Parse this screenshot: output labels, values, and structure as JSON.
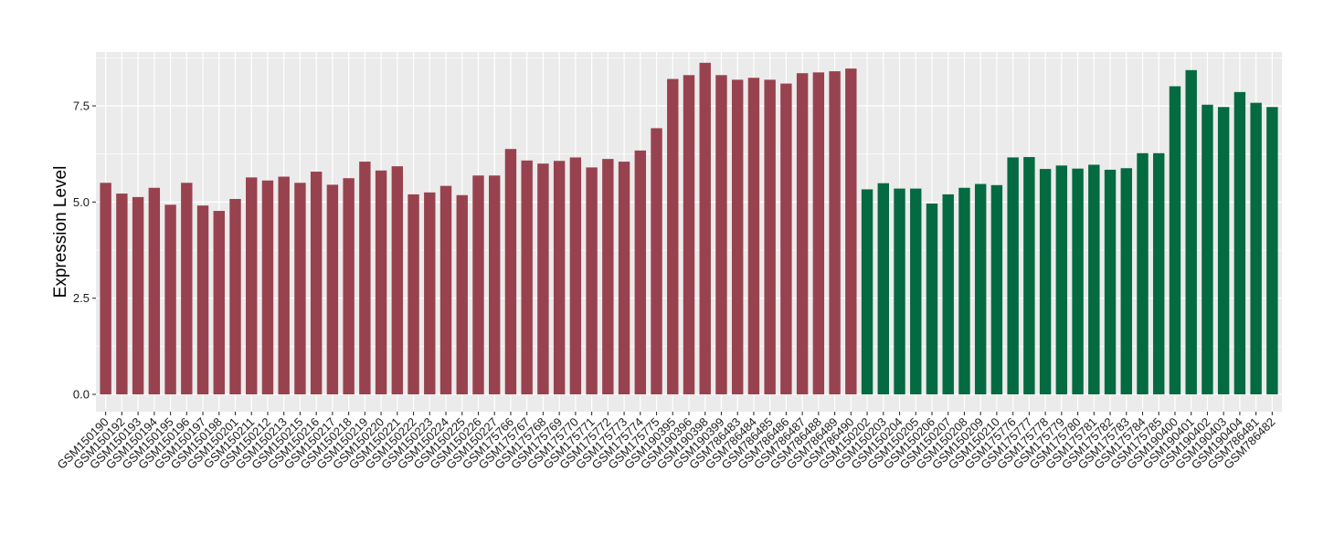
{
  "chart_data": {
    "type": "bar",
    "title": "",
    "xlabel": "",
    "ylabel": "Expression Level",
    "ylim": [
      -0.45,
      8.9
    ],
    "yticks": [
      0.0,
      2.5,
      5.0,
      7.5
    ],
    "ytick_labels": [
      "0.0",
      "2.5",
      "5.0",
      "7.5"
    ],
    "grid": true,
    "legend": "none",
    "colors": {
      "group1": "#99424f",
      "group2": "#046a41",
      "panel": "#ebebeb",
      "grid": "#ffffff"
    },
    "categories": [
      "GSM150190",
      "GSM150192",
      "GSM150193",
      "GSM150194",
      "GSM150195",
      "GSM150196",
      "GSM150197",
      "GSM150198",
      "GSM150201",
      "GSM150211",
      "GSM150212",
      "GSM150213",
      "GSM150215",
      "GSM150216",
      "GSM150217",
      "GSM150218",
      "GSM150219",
      "GSM150220",
      "GSM150221",
      "GSM150222",
      "GSM150223",
      "GSM150224",
      "GSM150225",
      "GSM150226",
      "GSM150227",
      "GSM175766",
      "GSM175767",
      "GSM175768",
      "GSM175769",
      "GSM175770",
      "GSM175771",
      "GSM175772",
      "GSM175773",
      "GSM175774",
      "GSM175775",
      "GSM190395",
      "GSM190396",
      "GSM190398",
      "GSM190399",
      "GSM786483",
      "GSM786484",
      "GSM786485",
      "GSM786486",
      "GSM786487",
      "GSM786488",
      "GSM786489",
      "GSM786490",
      "GSM150202",
      "GSM150203",
      "GSM150204",
      "GSM150205",
      "GSM150206",
      "GSM150207",
      "GSM150208",
      "GSM150209",
      "GSM150210",
      "GSM175776",
      "GSM175777",
      "GSM175778",
      "GSM175779",
      "GSM175780",
      "GSM175781",
      "GSM175782",
      "GSM175783",
      "GSM175784",
      "GSM175785",
      "GSM190400",
      "GSM190401",
      "GSM190402",
      "GSM190403",
      "GSM190404",
      "GSM786481",
      "GSM786482"
    ],
    "values": [
      5.5,
      5.22,
      5.13,
      5.37,
      4.93,
      5.5,
      4.91,
      4.77,
      5.08,
      5.64,
      5.56,
      5.66,
      5.5,
      5.79,
      5.45,
      5.62,
      6.05,
      5.82,
      5.93,
      5.2,
      5.25,
      5.42,
      5.18,
      5.69,
      5.69,
      6.38,
      6.08,
      6.0,
      6.07,
      6.16,
      5.9,
      6.12,
      6.05,
      6.34,
      6.92,
      8.2,
      8.3,
      8.62,
      8.3,
      8.18,
      8.23,
      8.18,
      8.08,
      8.35,
      8.37,
      8.4,
      8.47,
      5.33,
      5.49,
      5.35,
      5.35,
      4.96,
      5.2,
      5.37,
      5.47,
      5.44,
      6.16,
      6.17,
      5.86,
      5.95,
      5.87,
      5.97,
      5.84,
      5.88,
      6.27,
      6.27,
      8.01,
      8.43,
      7.53,
      7.47,
      7.86,
      7.58,
      7.47
    ],
    "groups": [
      "group1",
      "group1",
      "group1",
      "group1",
      "group1",
      "group1",
      "group1",
      "group1",
      "group1",
      "group1",
      "group1",
      "group1",
      "group1",
      "group1",
      "group1",
      "group1",
      "group1",
      "group1",
      "group1",
      "group1",
      "group1",
      "group1",
      "group1",
      "group1",
      "group1",
      "group1",
      "group1",
      "group1",
      "group1",
      "group1",
      "group1",
      "group1",
      "group1",
      "group1",
      "group1",
      "group1",
      "group1",
      "group1",
      "group1",
      "group1",
      "group1",
      "group1",
      "group1",
      "group1",
      "group1",
      "group1",
      "group1",
      "group2",
      "group2",
      "group2",
      "group2",
      "group2",
      "group2",
      "group2",
      "group2",
      "group2",
      "group2",
      "group2",
      "group2",
      "group2",
      "group2",
      "group2",
      "group2",
      "group2",
      "group2",
      "group2",
      "group2",
      "group2",
      "group2",
      "group2",
      "group2",
      "group2",
      "group2"
    ]
  }
}
